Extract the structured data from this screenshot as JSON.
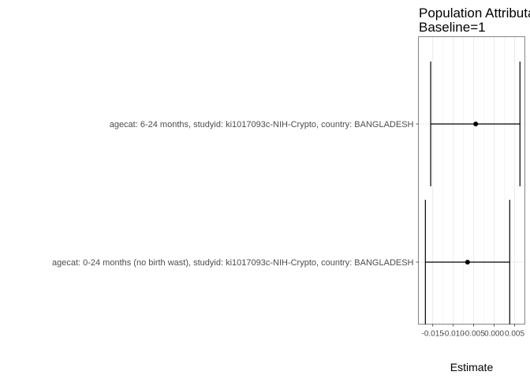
{
  "chart_data": {
    "type": "forest",
    "title": "Population Attributable Difference",
    "subtitle": "Baseline=1",
    "xlabel": "Estimate",
    "ylabel": "",
    "xlim": [
      -0.0185,
      0.0075
    ],
    "x_ticks": [
      -0.015,
      -0.01,
      -0.005,
      0.0,
      0.005
    ],
    "x_tick_labels": [
      "-0.015",
      "-0.010",
      "-0.005",
      "0.000",
      "0.005"
    ],
    "grid": true,
    "rows": [
      {
        "label": "agecat: 6-24 months, studyid: ki1017093c-NIH-Crypto, country: BANGLADESH",
        "estimate": -0.0045,
        "ci_lower": -0.0155,
        "ci_upper": 0.0063
      },
      {
        "label": "agecat: 0-24 months (no birth wast), studyid: ki1017093c-NIH-Crypto, country: BANGLADESH",
        "estimate": -0.0065,
        "ci_lower": -0.0168,
        "ci_upper": 0.0038
      }
    ]
  }
}
